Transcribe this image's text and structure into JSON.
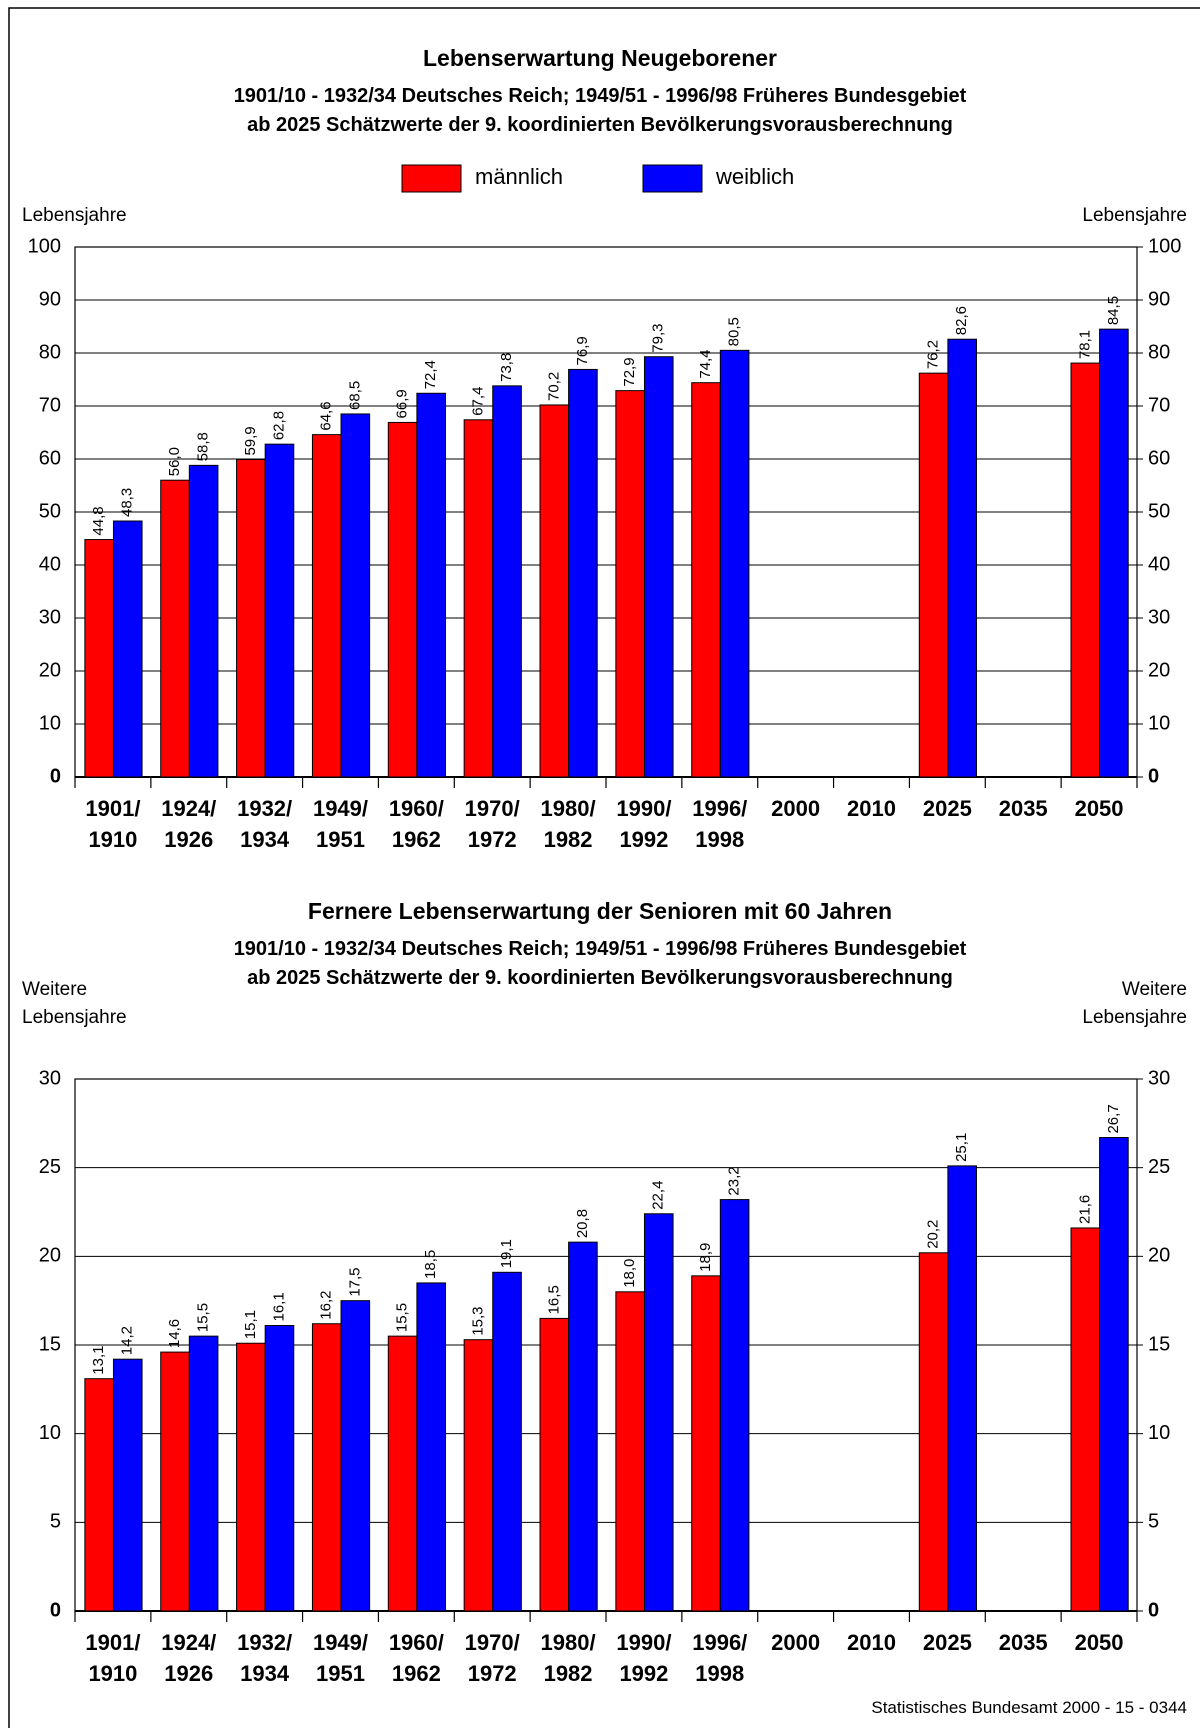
{
  "chart_data": [
    {
      "type": "bar",
      "title": "Lebenserwartung Neugeborener",
      "subtitle": "1901/10 - 1932/34 Deutsches Reich; 1949/51 - 1996/98 Früheres Bundesgebiet\nab 2025 Schätzwerte der 9. koordinierten Bevölkerungsvorausberechnung",
      "ylabel": "Lebensjahre",
      "y2label": "Lebensjahre",
      "categories": [
        "1901/\n1910",
        "1924/\n1926",
        "1932/\n1934",
        "1949/\n1951",
        "1960/\n1962",
        "1970/\n1972",
        "1980/\n1982",
        "1990/\n1992",
        "1996/\n1998",
        "2000",
        "2010",
        "2025",
        "2035",
        "2050"
      ],
      "series": [
        {
          "name": "männlich",
          "color": "#ff0000",
          "values": [
            44.8,
            56.0,
            59.9,
            64.6,
            66.9,
            67.4,
            70.2,
            72.9,
            74.4,
            null,
            null,
            76.2,
            null,
            78.1
          ],
          "value_labels": [
            "44,8",
            "56,0",
            "59,9",
            "64,6",
            "66,9",
            "67,4",
            "70,2",
            "72,9",
            "74,4",
            null,
            null,
            "76,2",
            null,
            "78,1"
          ]
        },
        {
          "name": "weiblich",
          "color": "#0000ff",
          "values": [
            48.3,
            58.8,
            62.8,
            68.5,
            72.4,
            73.8,
            76.9,
            79.3,
            80.5,
            null,
            null,
            82.6,
            null,
            84.5
          ],
          "value_labels": [
            "48,3",
            "58,8",
            "62,8",
            "68,5",
            "72,4",
            "73,8",
            "76,9",
            "79,3",
            "80,5",
            null,
            null,
            "82,6",
            null,
            "84,5"
          ]
        }
      ],
      "ylim": [
        0,
        100
      ],
      "yticks": [
        0,
        10,
        20,
        30,
        40,
        50,
        60,
        70,
        80,
        90,
        100
      ],
      "y2lim": [
        0,
        100
      ],
      "y2ticks": [
        0,
        10,
        20,
        30,
        40,
        50,
        60,
        70,
        80,
        90,
        100
      ],
      "grid": true
    },
    {
      "type": "bar",
      "title": "Fernere Lebenserwartung der Senioren mit 60 Jahren",
      "subtitle": "1901/10 - 1932/34 Deutsches Reich; 1949/51 - 1996/98 Früheres Bundesgebiet\nab 2025 Schätzwerte der 9. koordinierten Bevölkerungsvorausberechnung",
      "ylabel": "Weitere\nLebensjahre",
      "y2label": "Weitere\nLebensjahre",
      "categories": [
        "1901/\n1910",
        "1924/\n1926",
        "1932/\n1934",
        "1949/\n1951",
        "1960/\n1962",
        "1970/\n1972",
        "1980/\n1982",
        "1990/\n1992",
        "1996/\n1998",
        "2000",
        "2010",
        "2025",
        "2035",
        "2050"
      ],
      "series": [
        {
          "color": "#ff0000",
          "values": [
            13.1,
            14.6,
            15.1,
            16.2,
            15.5,
            15.3,
            16.5,
            18.0,
            18.9,
            null,
            null,
            20.2,
            null,
            21.6
          ],
          "value_labels": [
            "13,1",
            "14,6",
            "15,1",
            "16,2",
            "15,5",
            "15,3",
            "16,5",
            "18,0",
            "18,9",
            null,
            null,
            "20,2",
            null,
            "21,6"
          ]
        },
        {
          "color": "#0000ff",
          "values": [
            14.2,
            15.5,
            16.1,
            17.5,
            18.5,
            19.1,
            20.8,
            22.4,
            23.2,
            null,
            null,
            25.1,
            null,
            26.7
          ],
          "value_labels": [
            "14,2",
            "15,5",
            "16,1",
            "17,5",
            "18,5",
            "19,1",
            "20,8",
            "22,4",
            "23,2",
            null,
            null,
            "25,1",
            null,
            "26,7"
          ]
        }
      ],
      "ylim": [
        0,
        30
      ],
      "yticks": [
        0,
        5,
        10,
        15,
        20,
        25,
        30
      ],
      "y2lim": [
        0,
        30
      ],
      "y2ticks": [
        0,
        5,
        10,
        15,
        20,
        25,
        30
      ],
      "grid": true
    }
  ],
  "footer": "Statistisches Bundesamt 2000 - 15 - 0344"
}
